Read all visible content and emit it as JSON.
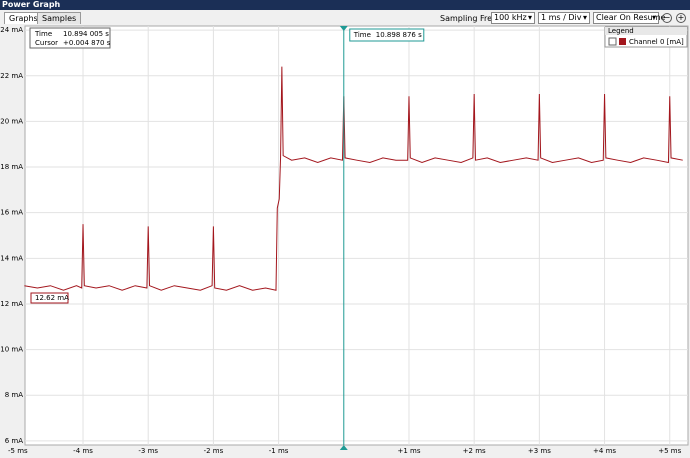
{
  "window": {
    "title": "Power Graph"
  },
  "tabs": [
    "Graphs",
    "Samples"
  ],
  "toolbar": {
    "sampling_label": "Sampling Freq.:",
    "sampling": "100 kHz",
    "division": "1 ms / Div",
    "mode": "Clear On Resume"
  },
  "info": {
    "time_label": "Time",
    "time": "10.894 005 s",
    "cursor_label": "Cursor",
    "cursor": "+0.004 870 s",
    "start_value": "12.62 mA"
  },
  "chart_data": {
    "type": "line",
    "x": [
      -4.9,
      -4.7,
      -4.5,
      -4.3,
      -4.1,
      -4.02,
      -4.0,
      -3.98,
      -3.8,
      -3.6,
      -3.4,
      -3.2,
      -3.02,
      -3.0,
      -2.98,
      -2.8,
      -2.6,
      -2.4,
      -2.2,
      -2.02,
      -2.0,
      -1.98,
      -1.8,
      -1.6,
      -1.4,
      -1.2,
      -1.04,
      -1.02,
      -0.99,
      -0.97,
      -0.95,
      -0.93,
      -0.8,
      -0.6,
      -0.4,
      -0.2,
      -0.02,
      0.0,
      0.02,
      0.2,
      0.4,
      0.6,
      0.8,
      0.98,
      1.0,
      1.02,
      1.2,
      1.4,
      1.6,
      1.8,
      1.98,
      2.0,
      2.02,
      2.2,
      2.4,
      2.6,
      2.8,
      2.98,
      3.0,
      3.02,
      3.2,
      3.4,
      3.6,
      3.8,
      3.98,
      4.0,
      4.02,
      4.2,
      4.4,
      4.6,
      4.8,
      4.98,
      5.0,
      5.02,
      5.2
    ],
    "series": [
      {
        "name": "Channel 0 [mA]",
        "color": "#a3161d",
        "values": [
          12.8,
          12.7,
          12.8,
          12.6,
          12.8,
          12.7,
          15.5,
          12.8,
          12.7,
          12.8,
          12.6,
          12.8,
          12.7,
          15.4,
          12.8,
          12.6,
          12.8,
          12.7,
          12.6,
          12.8,
          15.4,
          12.7,
          12.6,
          12.8,
          12.6,
          12.7,
          12.6,
          16.2,
          16.6,
          18.4,
          22.4,
          18.5,
          18.3,
          18.4,
          18.2,
          18.4,
          18.3,
          21.1,
          18.4,
          18.3,
          18.2,
          18.4,
          18.3,
          18.3,
          21.1,
          18.4,
          18.2,
          18.4,
          18.3,
          18.2,
          18.4,
          21.2,
          18.3,
          18.4,
          18.2,
          18.3,
          18.4,
          18.3,
          21.2,
          18.4,
          18.2,
          18.3,
          18.4,
          18.2,
          18.3,
          21.2,
          18.4,
          18.3,
          18.2,
          18.4,
          18.3,
          18.2,
          21.1,
          18.4,
          18.3
        ]
      }
    ],
    "xlim": [
      -4.89,
      5.28
    ],
    "ylim": [
      5.82,
      24.18
    ],
    "xticks": [
      {
        "value": -5,
        "label": "-5 ms"
      },
      {
        "value": -4,
        "label": "-4 ms"
      },
      {
        "value": -3,
        "label": "-3 ms"
      },
      {
        "value": -2,
        "label": "-2 ms"
      },
      {
        "value": -1,
        "label": "-1 ms"
      },
      {
        "value": 1,
        "label": "+1 ms"
      },
      {
        "value": 2,
        "label": "+2 ms"
      },
      {
        "value": 3,
        "label": "+3 ms"
      },
      {
        "value": 4,
        "label": "+4 ms"
      },
      {
        "value": 5,
        "label": "+5 ms"
      }
    ],
    "yticks": [
      {
        "value": 6,
        "label": "6 mA"
      },
      {
        "value": 8,
        "label": "8 mA"
      },
      {
        "value": 10,
        "label": "10 mA"
      },
      {
        "value": 12,
        "label": "12 mA"
      },
      {
        "value": 14,
        "label": "14 mA"
      },
      {
        "value": 16,
        "label": "16 mA"
      },
      {
        "value": 18,
        "label": "18 mA"
      },
      {
        "value": 20,
        "label": "20 mA"
      },
      {
        "value": 22,
        "label": "22 mA"
      },
      {
        "value": 24,
        "label": "24 mA"
      }
    ],
    "grid": true,
    "legend_title": "Legend",
    "legend_position": "top-right",
    "cursor": {
      "x": 0,
      "color": "#1f9a94",
      "time_label": "Time",
      "time": "10.898 876 s"
    }
  }
}
